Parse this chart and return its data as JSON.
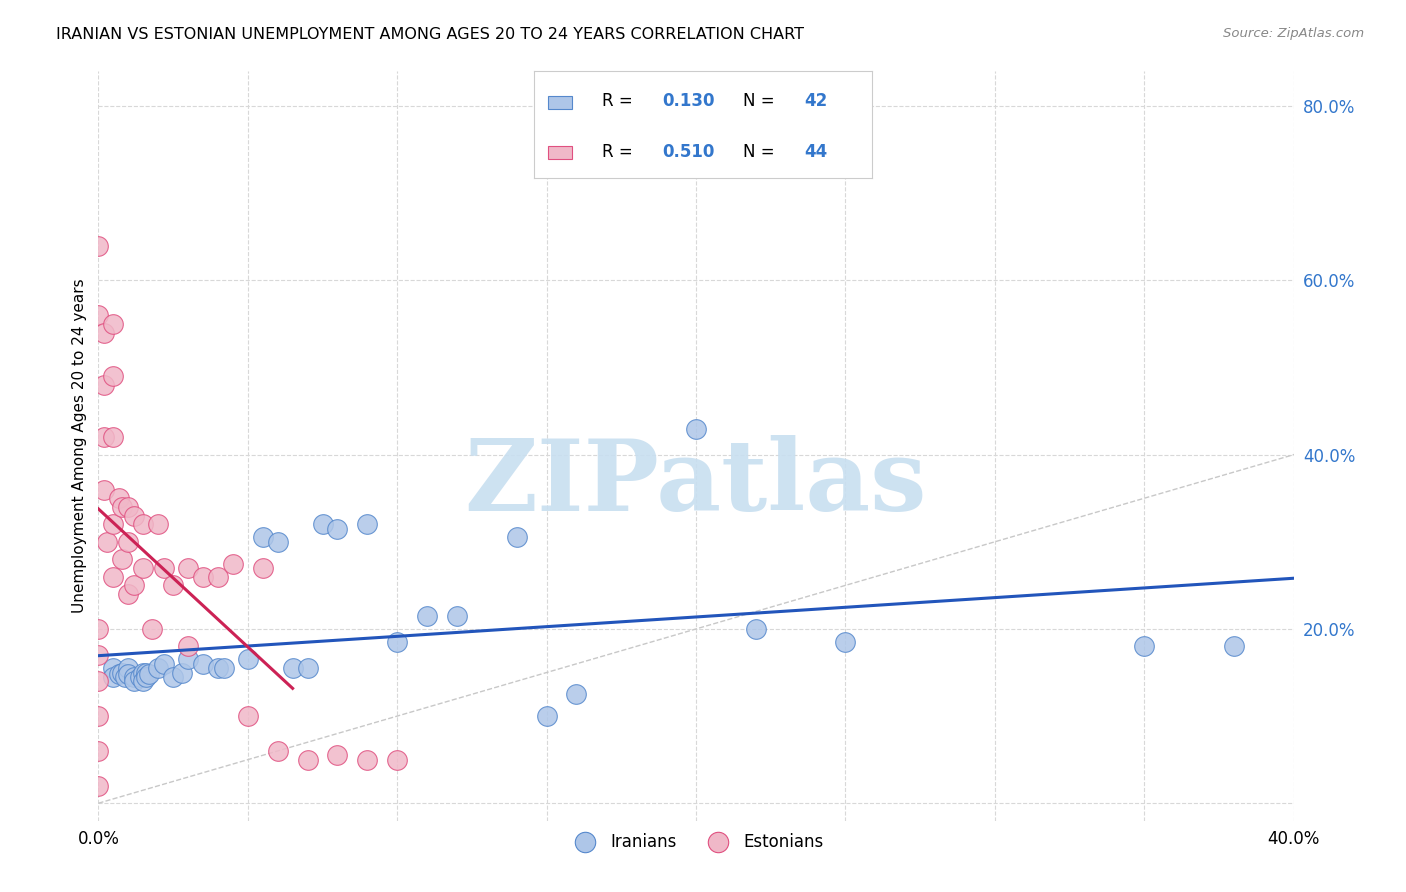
{
  "title": "IRANIAN VS ESTONIAN UNEMPLOYMENT AMONG AGES 20 TO 24 YEARS CORRELATION CHART",
  "source": "Source: ZipAtlas.com",
  "ylabel": "Unemployment Among Ages 20 to 24 years",
  "xlim": [
    0.0,
    0.4
  ],
  "ylim": [
    -0.02,
    0.84
  ],
  "ytick_vals": [
    0.0,
    0.2,
    0.4,
    0.6,
    0.8
  ],
  "ytick_labels": [
    "",
    "20.0%",
    "40.0%",
    "60.0%",
    "80.0%"
  ],
  "xtick_vals": [
    0.0,
    0.05,
    0.1,
    0.15,
    0.2,
    0.25,
    0.3,
    0.35,
    0.4
  ],
  "xtick_labels": [
    "0.0%",
    "",
    "",
    "",
    "",
    "",
    "",
    "",
    "40.0%"
  ],
  "R_iranian": 0.13,
  "N_iranian": 42,
  "R_estonian": 0.51,
  "N_estonian": 44,
  "color_iranian": "#aec6e8",
  "color_estonian": "#f0b8c8",
  "edge_iranian": "#5588cc",
  "edge_estonian": "#e05080",
  "trendline_iranian": "#2255bb",
  "trendline_estonian": "#cc2255",
  "diagonal_color": "#c8c8c8",
  "background_color": "#ffffff",
  "grid_color": "#d8d8d8",
  "iranian_x": [
    0.005,
    0.005,
    0.007,
    0.008,
    0.009,
    0.01,
    0.01,
    0.012,
    0.012,
    0.014,
    0.015,
    0.015,
    0.016,
    0.016,
    0.017,
    0.02,
    0.022,
    0.025,
    0.028,
    0.03,
    0.035,
    0.04,
    0.042,
    0.05,
    0.055,
    0.06,
    0.065,
    0.07,
    0.075,
    0.08,
    0.09,
    0.1,
    0.11,
    0.12,
    0.14,
    0.15,
    0.16,
    0.2,
    0.22,
    0.25,
    0.35,
    0.38
  ],
  "iranian_y": [
    0.155,
    0.145,
    0.148,
    0.15,
    0.145,
    0.155,
    0.148,
    0.145,
    0.14,
    0.145,
    0.15,
    0.14,
    0.15,
    0.145,
    0.148,
    0.155,
    0.16,
    0.145,
    0.15,
    0.165,
    0.16,
    0.155,
    0.155,
    0.165,
    0.305,
    0.3,
    0.155,
    0.155,
    0.32,
    0.315,
    0.32,
    0.185,
    0.215,
    0.215,
    0.305,
    0.1,
    0.125,
    0.43,
    0.2,
    0.185,
    0.18,
    0.18
  ],
  "estonian_x": [
    0.0,
    0.0,
    0.0,
    0.0,
    0.0,
    0.0,
    0.0,
    0.0,
    0.002,
    0.002,
    0.002,
    0.002,
    0.003,
    0.005,
    0.005,
    0.005,
    0.005,
    0.005,
    0.007,
    0.008,
    0.008,
    0.01,
    0.01,
    0.01,
    0.012,
    0.012,
    0.015,
    0.015,
    0.018,
    0.02,
    0.022,
    0.025,
    0.03,
    0.03,
    0.035,
    0.04,
    0.045,
    0.05,
    0.055,
    0.06,
    0.07,
    0.08,
    0.09,
    0.1
  ],
  "estonian_y": [
    0.64,
    0.56,
    0.02,
    0.06,
    0.1,
    0.14,
    0.17,
    0.2,
    0.54,
    0.48,
    0.42,
    0.36,
    0.3,
    0.55,
    0.49,
    0.42,
    0.32,
    0.26,
    0.35,
    0.34,
    0.28,
    0.34,
    0.3,
    0.24,
    0.33,
    0.25,
    0.32,
    0.27,
    0.2,
    0.32,
    0.27,
    0.25,
    0.27,
    0.18,
    0.26,
    0.26,
    0.275,
    0.1,
    0.27,
    0.06,
    0.05,
    0.055,
    0.05,
    0.05
  ],
  "legend_R_color": "#3377cc",
  "legend_N_color": "#3377cc",
  "watermark_color": "#c8dff0",
  "watermark_text": "ZIPatlas",
  "legend_label_iranian": "Iranians",
  "legend_label_estonian": "Estonians"
}
